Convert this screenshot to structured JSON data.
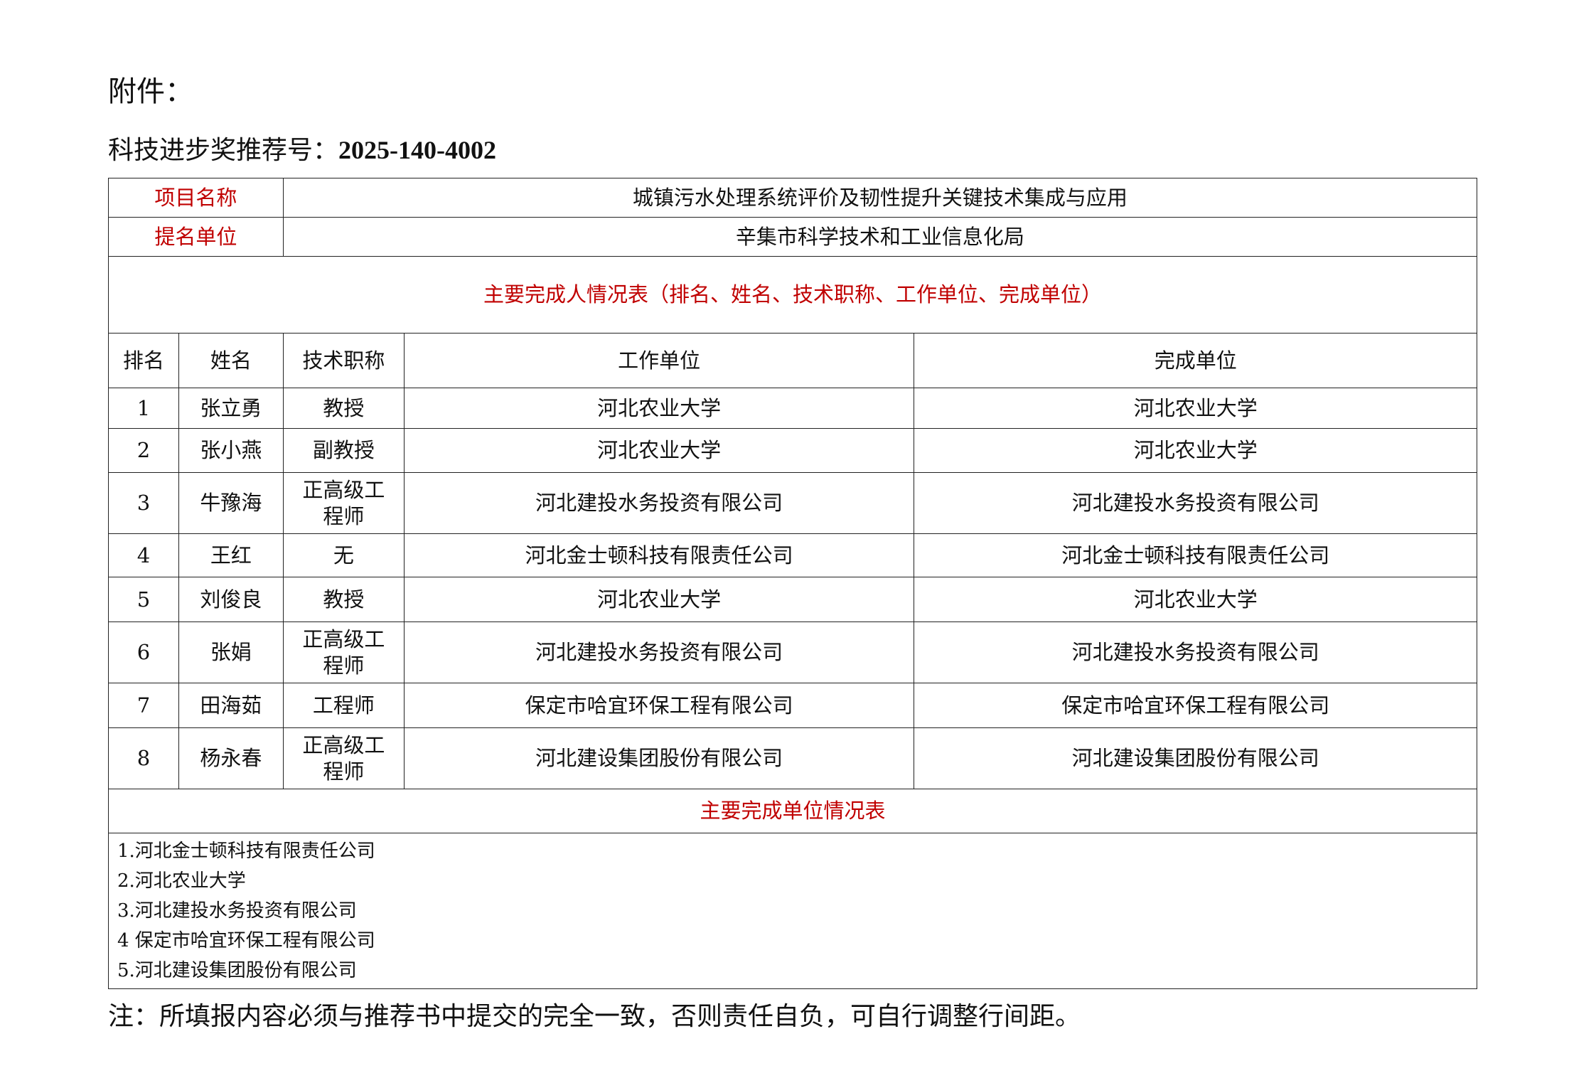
{
  "attachment_label": "附件：",
  "recommend": {
    "label": "科技进步奖推荐号：",
    "number": "2025-140-4002"
  },
  "project": {
    "name_label": "项目名称",
    "name": "城镇污水处理系统评价及韧性提升关键技术集成与应用",
    "nominator_label": "提名单位",
    "nominator": "辛集市科学技术和工业信息化局"
  },
  "people_table": {
    "title": "主要完成人情况表（排名、姓名、技术职称、工作单位、完成单位）",
    "headers": [
      "排名",
      "姓名",
      "技术职称",
      "工作单位",
      "完成单位"
    ],
    "rows": [
      [
        "1",
        "张立勇",
        "教授",
        "河北农业大学",
        "河北农业大学"
      ],
      [
        "2",
        "张小燕",
        "副教授",
        "河北农业大学",
        "河北农业大学"
      ],
      [
        "3",
        "牛豫海",
        "正高级工程师",
        "河北建投水务投资有限公司",
        "河北建投水务投资有限公司"
      ],
      [
        "4",
        "王红",
        "无",
        "河北金士顿科技有限责任公司",
        "河北金士顿科技有限责任公司"
      ],
      [
        "5",
        "刘俊良",
        "教授",
        "河北农业大学",
        "河北农业大学"
      ],
      [
        "6",
        "张娟",
        "正高级工程师",
        "河北建投水务投资有限公司",
        "河北建投水务投资有限公司"
      ],
      [
        "7",
        "田海茹",
        "工程师",
        "保定市哈宜环保工程有限公司",
        "保定市哈宜环保工程有限公司"
      ],
      [
        "8",
        "杨永春",
        "正高级工程师",
        "河北建设集团股份有限公司",
        "河北建设集团股份有限公司"
      ]
    ]
  },
  "units_table": {
    "title": "主要完成单位情况表",
    "items": [
      "1.河北金士顿科技有限责任公司",
      "2.河北农业大学",
      "3.河北建投水务投资有限公司",
      "4 保定市哈宜环保工程有限公司",
      "5.河北建设集团股份有限公司"
    ]
  },
  "note": "注：所填报内容必须与推荐书中提交的完全一致，否则责任自负，可自行调整行间距。"
}
